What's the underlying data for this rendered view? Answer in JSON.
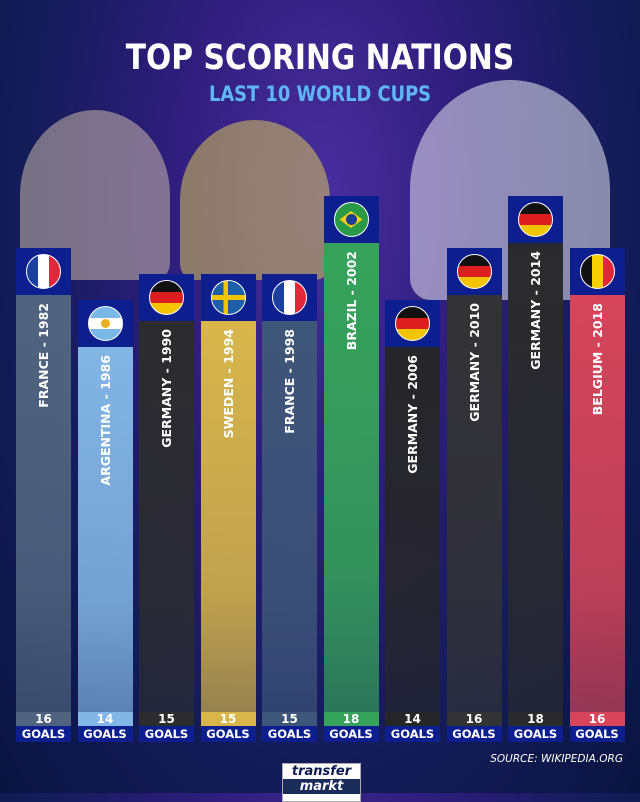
{
  "chart_data": {
    "type": "bar",
    "title": "TOP SCORING NATIONS",
    "subtitle": "LAST 10 WORLD CUPS",
    "categories": [
      "FRANCE - 1982",
      "ARGENTINA - 1986",
      "GERMANY - 1990",
      "SWEDEN - 1994",
      "FRANCE - 1998",
      "BRAZIL - 2002",
      "GERMANY - 2006",
      "GERMANY - 2010",
      "GERMANY - 2014",
      "BELGIUM - 2018"
    ],
    "values": [
      16,
      14,
      15,
      15,
      15,
      18,
      14,
      16,
      18,
      16
    ],
    "unit_label": "GOALS",
    "flags": [
      "france",
      "argentina",
      "germany",
      "sweden",
      "france",
      "brazil",
      "germany",
      "germany",
      "germany",
      "belgium"
    ],
    "colors": [
      "#50647f",
      "#82b6e4",
      "#2c2c2e",
      "#d8b64a",
      "#3e5678",
      "#36a35a",
      "#262628",
      "#333335",
      "#2a2a2c",
      "#d6455a"
    ]
  },
  "footer": {
    "source": "SOURCE: WIKIPEDIA.ORG",
    "logo_line1": "transfer",
    "logo_line2": "markt"
  }
}
